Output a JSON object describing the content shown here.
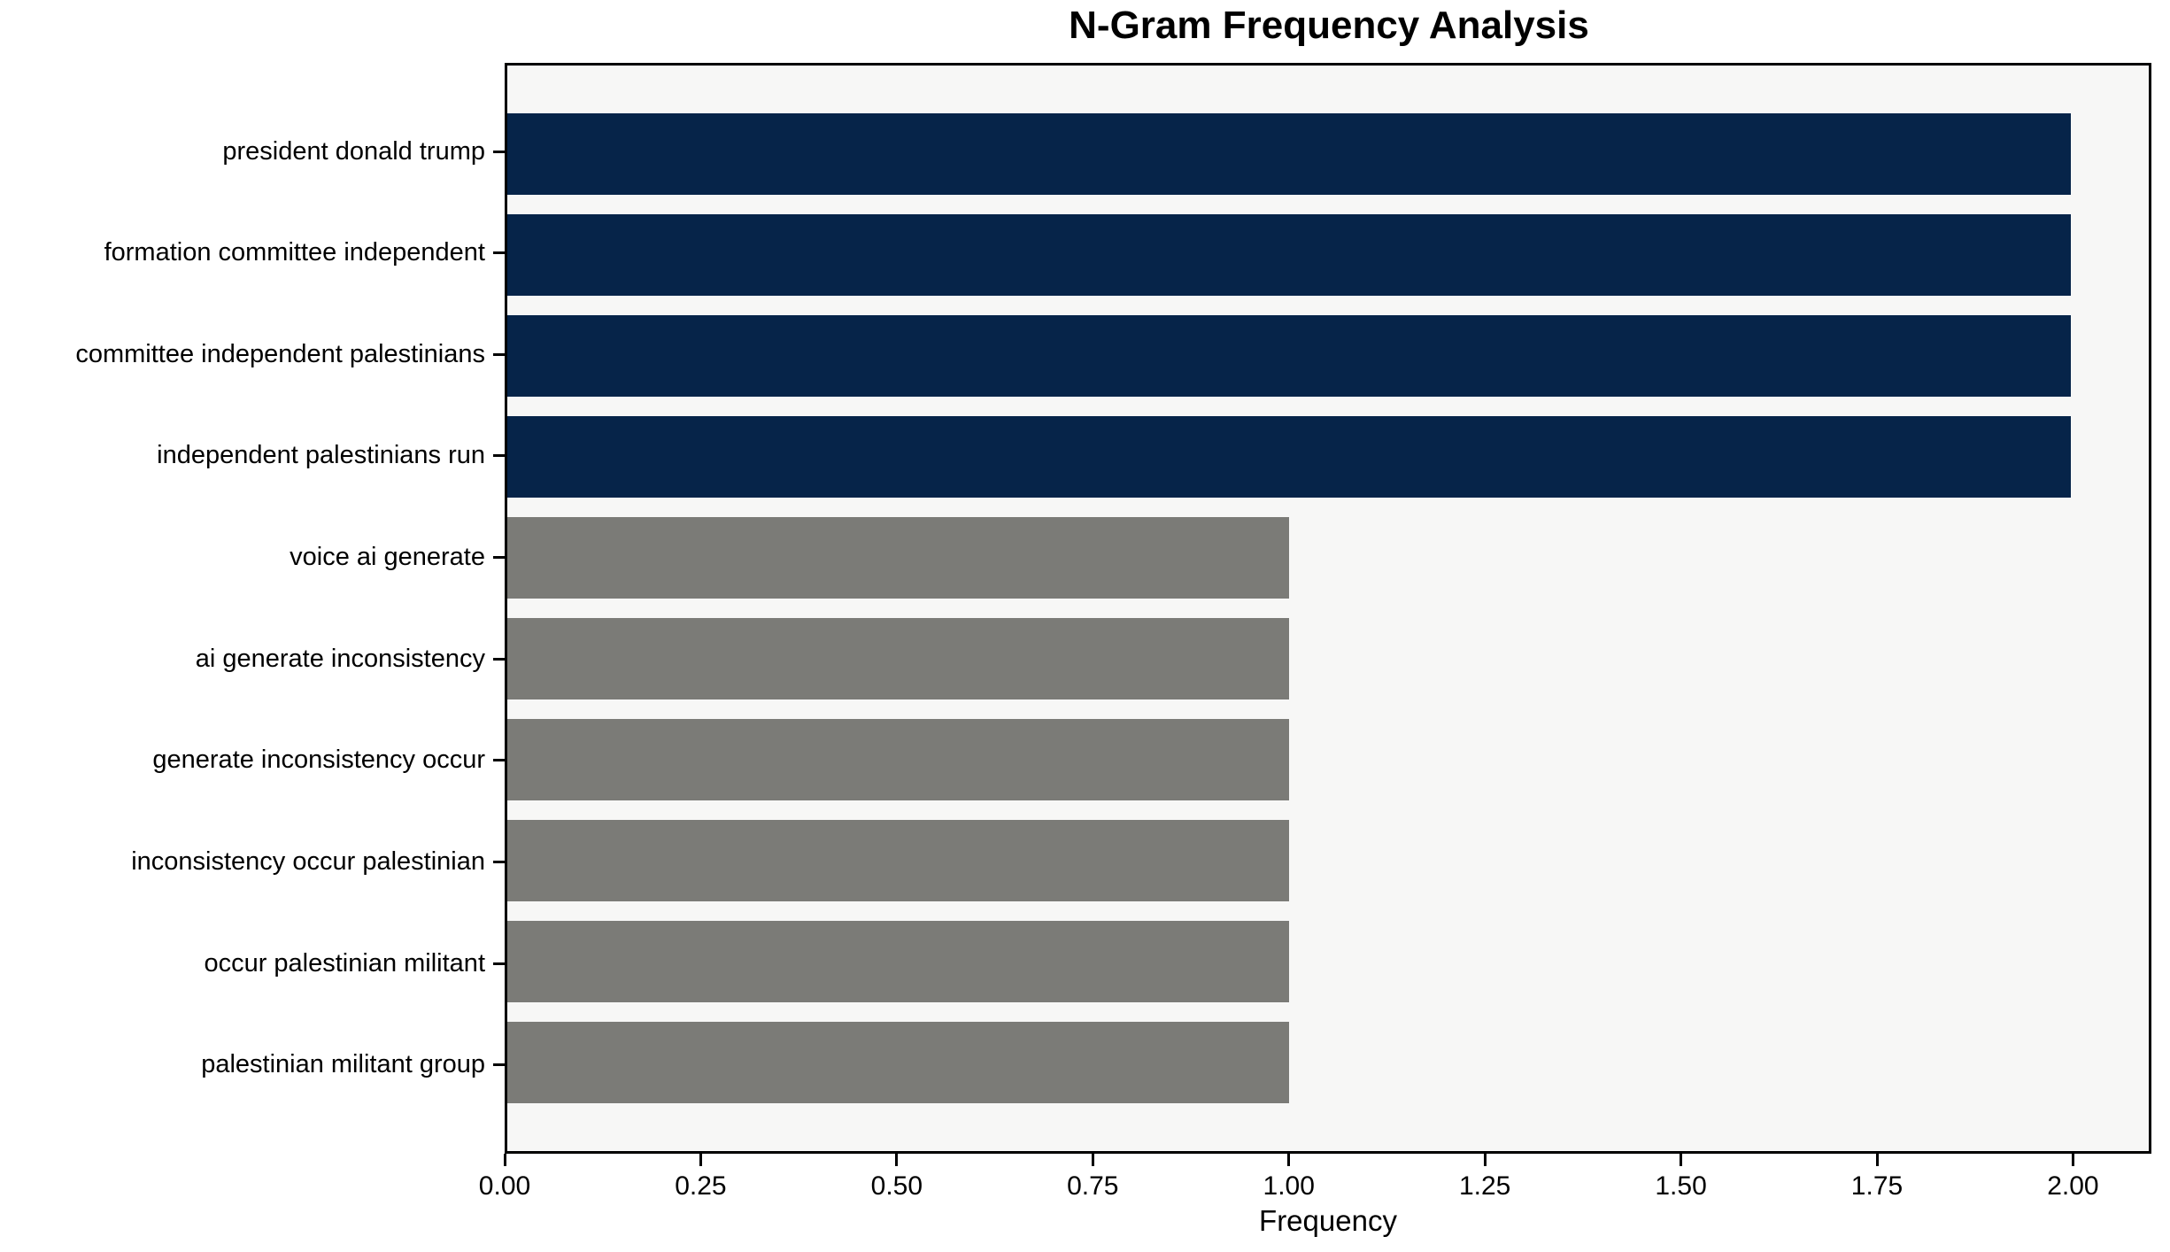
{
  "chart_data": {
    "type": "bar",
    "orientation": "horizontal",
    "title": "N-Gram Frequency Analysis",
    "xlabel": "Frequency",
    "ylabel": "",
    "categories": [
      "president donald trump",
      "formation committee independent",
      "committee independent palestinians",
      "independent palestinians run",
      "voice ai generate",
      "ai generate inconsistency",
      "generate inconsistency occur",
      "inconsistency occur palestinian",
      "occur palestinian militant",
      "palestinian militant group"
    ],
    "values": [
      2,
      2,
      2,
      2,
      1,
      1,
      1,
      1,
      1,
      1
    ],
    "bar_colors": [
      "#062449",
      "#062449",
      "#062449",
      "#062449",
      "#7b7b77",
      "#7b7b77",
      "#7b7b77",
      "#7b7b77",
      "#7b7b77",
      "#7b7b77"
    ],
    "colors": {
      "top_ngram_bar": "#062449",
      "single_occurrence_bar": "#7b7b77",
      "plot_background": "#f7f7f6",
      "figure_background": "#ffffff",
      "axis_and_text": "#000000"
    },
    "xlim": [
      0,
      2.1
    ],
    "x_tick_values": [
      0,
      0.25,
      0.5,
      0.75,
      1.0,
      1.25,
      1.5,
      1.75,
      2.0
    ],
    "x_tick_labels": [
      "0.00",
      "0.25",
      "0.50",
      "0.75",
      "1.00",
      "1.25",
      "1.50",
      "1.75",
      "2.00"
    ],
    "grid": "off",
    "legend": "none"
  }
}
